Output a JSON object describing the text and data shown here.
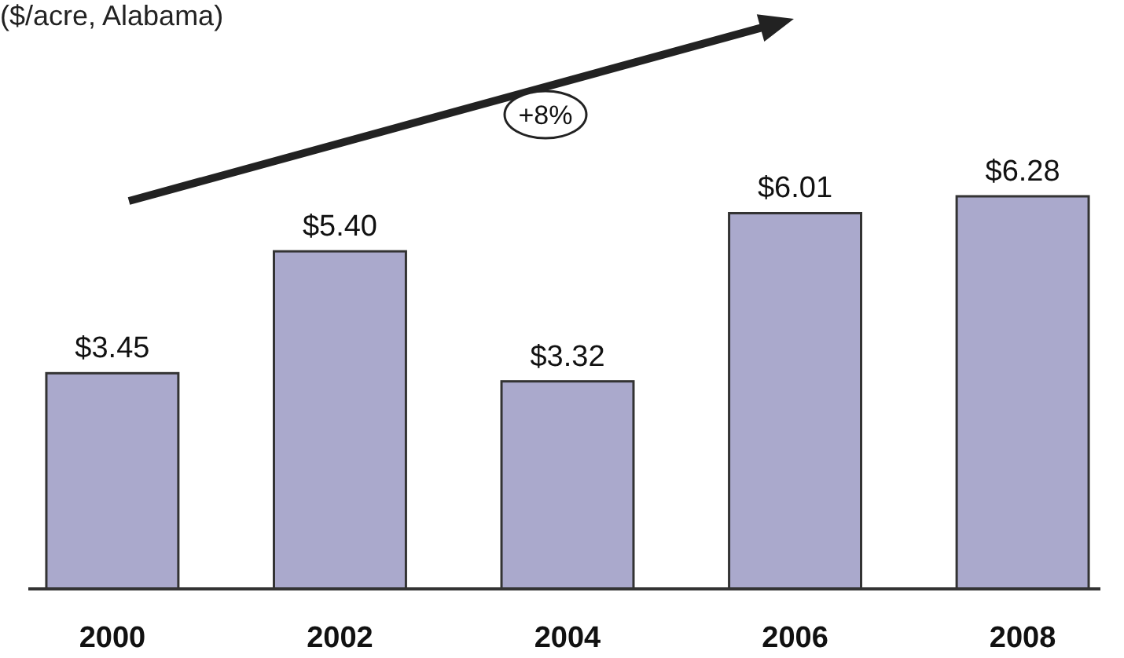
{
  "chart_data": {
    "type": "bar",
    "title": "($/acre, Alabama)",
    "categories": [
      "2000",
      "2002",
      "2004",
      "2006",
      "2008"
    ],
    "values": [
      3.45,
      5.4,
      3.32,
      6.01,
      6.28
    ],
    "value_labels": [
      "$3.45",
      "$5.40",
      "$3.32",
      "$6.01",
      "$6.28"
    ],
    "color": "#aaa9cc",
    "annotations": [
      "+8%"
    ]
  }
}
